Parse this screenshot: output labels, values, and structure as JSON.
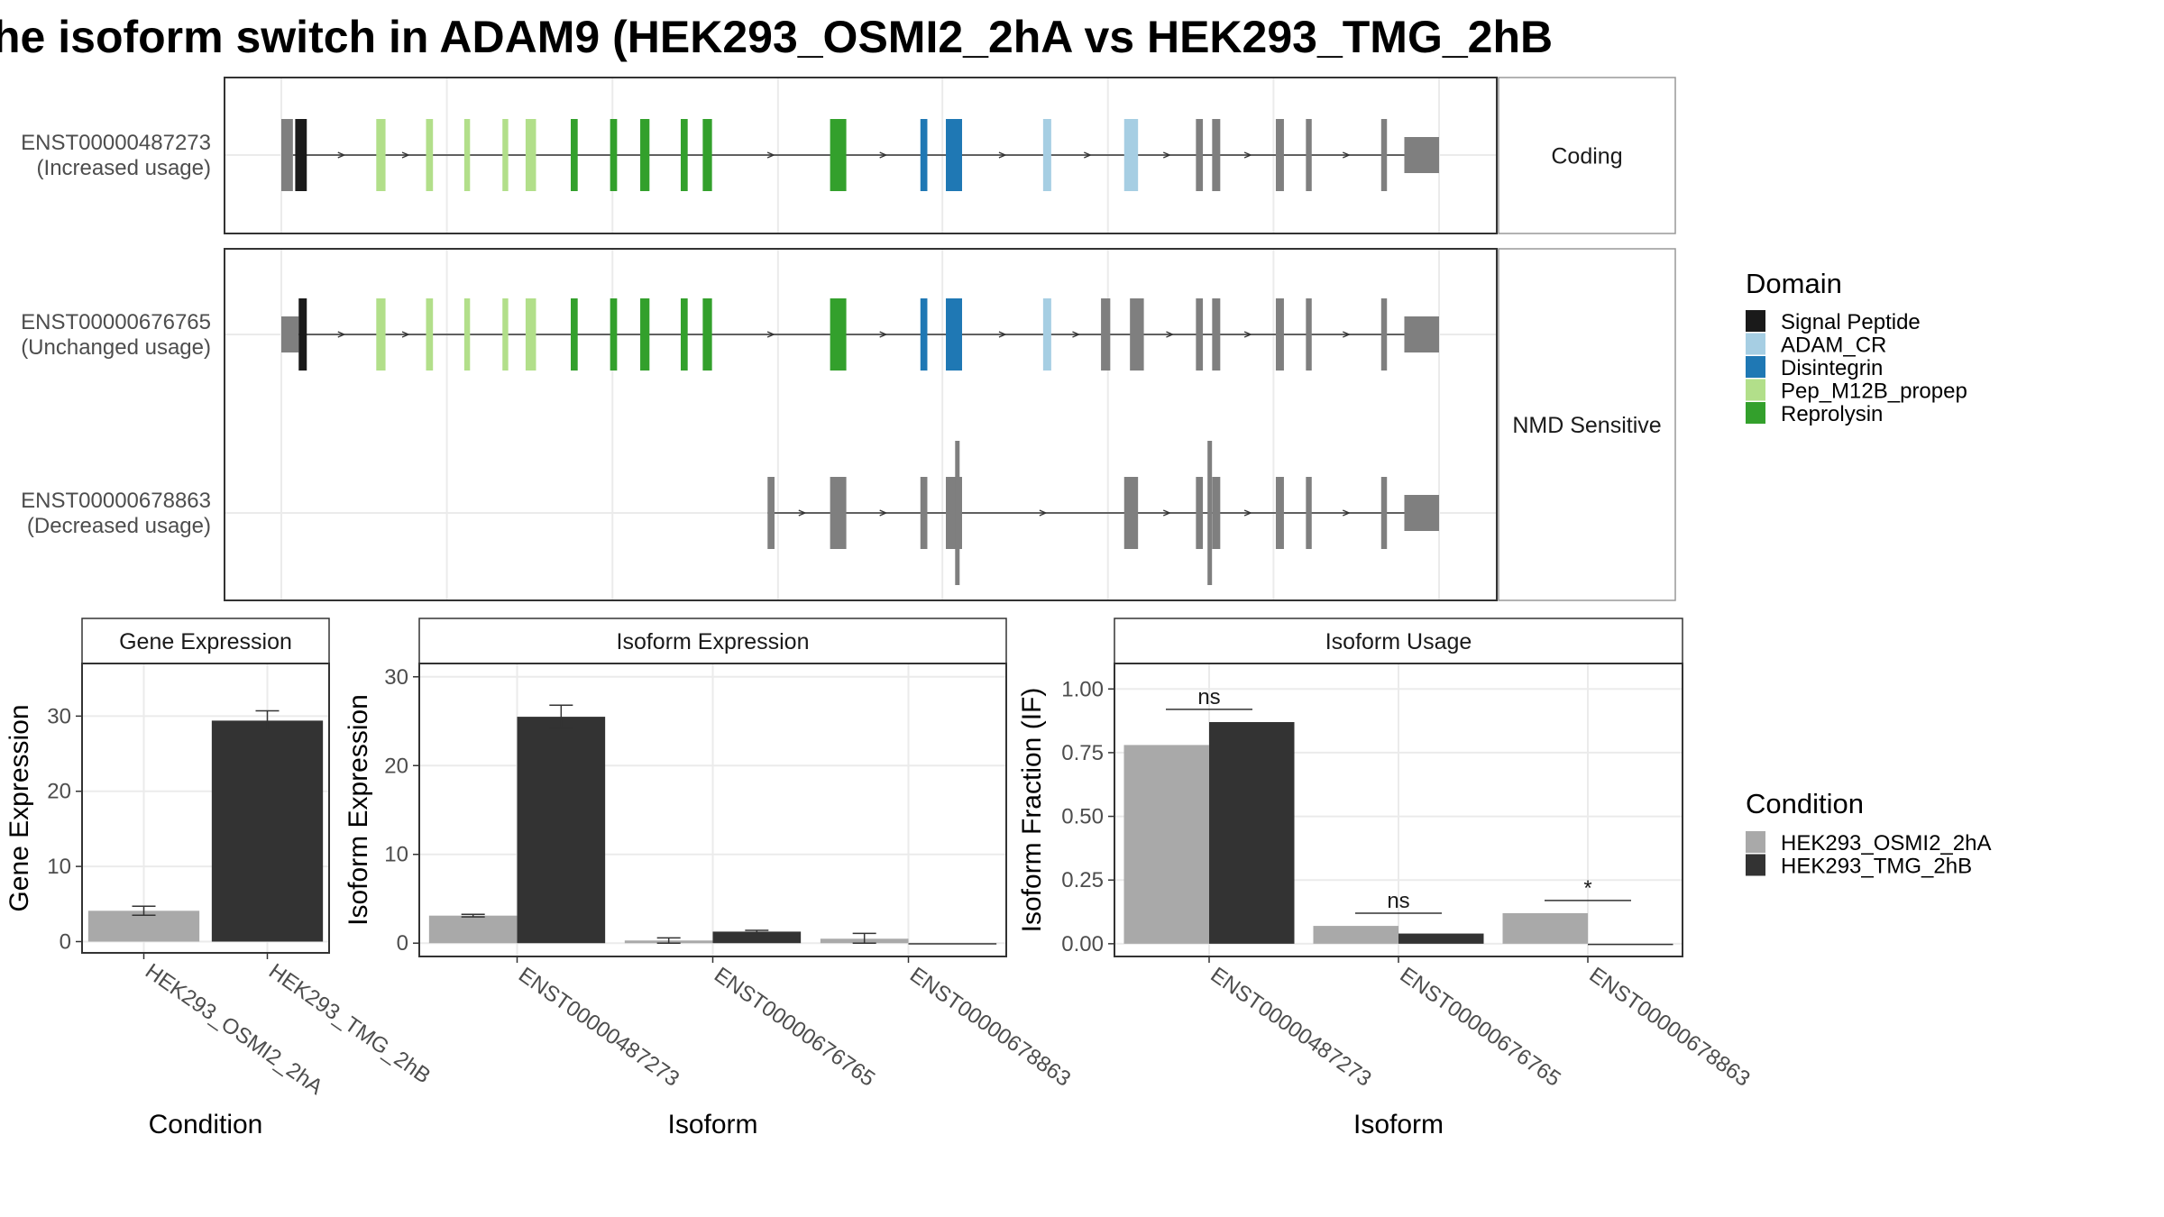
{
  "title": "he isoform switch in ADAM9 (HEK293_OSMI2_2hA vs HEK293_TMG_2hB",
  "colors": {
    "signal_peptide": "#1a1a1a",
    "adam_cr": "#a6cee3",
    "disintegrin": "#1f78b4",
    "pep_m12b_propep": "#b2df8a",
    "reprolysin": "#33a02c",
    "exon_grey": "#7f7f7f",
    "cond_a": "#a9a9a9",
    "cond_b": "#333333"
  },
  "chart_data": [
    {
      "type": "transcript_structure",
      "transcripts": [
        {
          "id": "ENST00000487273",
          "usage": "(Increased usage)",
          "group": "Coding",
          "span": [
            0.01,
            1.0
          ],
          "exons": [
            [
              0.0,
              0.01,
              "grey"
            ],
            [
              0.012,
              0.022,
              "signal_peptide"
            ],
            [
              0.082,
              0.09,
              "pep_m12b_propep"
            ],
            [
              0.125,
              0.131,
              "pep_m12b_propep"
            ],
            [
              0.158,
              0.163,
              "pep_m12b_propep"
            ],
            [
              0.191,
              0.196,
              "pep_m12b_propep"
            ],
            [
              0.211,
              0.22,
              "pep_m12b_propep"
            ],
            [
              0.25,
              0.256,
              "reprolysin"
            ],
            [
              0.284,
              0.29,
              "reprolysin"
            ],
            [
              0.31,
              0.318,
              "reprolysin"
            ],
            [
              0.345,
              0.351,
              "reprolysin"
            ],
            [
              0.364,
              0.372,
              "reprolysin"
            ],
            [
              0.474,
              0.488,
              "reprolysin"
            ],
            [
              0.552,
              0.558,
              "disintegrin"
            ],
            [
              0.574,
              0.588,
              "disintegrin"
            ],
            [
              0.658,
              0.665,
              "adam_cr"
            ],
            [
              0.728,
              0.74,
              "adam_cr"
            ],
            [
              0.79,
              0.796,
              "grey"
            ],
            [
              0.804,
              0.811,
              "grey"
            ],
            [
              0.859,
              0.866,
              "grey"
            ],
            [
              0.885,
              0.89,
              "grey"
            ],
            [
              0.95,
              0.955,
              "grey"
            ],
            [
              0.97,
              1.0,
              "grey"
            ]
          ]
        },
        {
          "id": "ENST00000676765",
          "usage": "(Unchanged usage)",
          "group": "NMD Sensitive",
          "span": [
            0.0,
            1.0
          ],
          "exons": [
            [
              0.0,
              0.015,
              "grey"
            ],
            [
              0.015,
              0.022,
              "signal_peptide"
            ],
            [
              0.082,
              0.09,
              "pep_m12b_propep"
            ],
            [
              0.125,
              0.131,
              "pep_m12b_propep"
            ],
            [
              0.158,
              0.163,
              "pep_m12b_propep"
            ],
            [
              0.191,
              0.196,
              "pep_m12b_propep"
            ],
            [
              0.211,
              0.22,
              "pep_m12b_propep"
            ],
            [
              0.25,
              0.256,
              "reprolysin"
            ],
            [
              0.284,
              0.29,
              "reprolysin"
            ],
            [
              0.31,
              0.318,
              "reprolysin"
            ],
            [
              0.345,
              0.351,
              "reprolysin"
            ],
            [
              0.364,
              0.372,
              "reprolysin"
            ],
            [
              0.474,
              0.488,
              "reprolysin"
            ],
            [
              0.552,
              0.558,
              "disintegrin"
            ],
            [
              0.574,
              0.588,
              "disintegrin"
            ],
            [
              0.658,
              0.665,
              "adam_cr"
            ],
            [
              0.708,
              0.716,
              "grey"
            ],
            [
              0.733,
              0.745,
              "grey"
            ],
            [
              0.79,
              0.796,
              "grey"
            ],
            [
              0.804,
              0.811,
              "grey"
            ],
            [
              0.859,
              0.866,
              "grey"
            ],
            [
              0.885,
              0.89,
              "grey"
            ],
            [
              0.95,
              0.955,
              "grey"
            ],
            [
              0.97,
              1.0,
              "grey"
            ]
          ]
        },
        {
          "id": "ENST00000678863",
          "usage": "(Decreased usage)",
          "group": "NMD Sensitive",
          "span": [
            0.42,
            1.0
          ],
          "exons": [
            [
              0.42,
              0.426,
              "grey"
            ],
            [
              0.474,
              0.488,
              "grey"
            ],
            [
              0.552,
              0.558,
              "grey"
            ],
            [
              0.574,
              0.588,
              "grey"
            ],
            [
              0.728,
              0.74,
              "grey"
            ],
            [
              0.79,
              0.796,
              "grey"
            ],
            [
              0.804,
              0.811,
              "grey"
            ],
            [
              0.859,
              0.866,
              "grey"
            ],
            [
              0.885,
              0.89,
              "grey"
            ],
            [
              0.95,
              0.955,
              "grey"
            ],
            [
              0.97,
              1.0,
              "grey"
            ]
          ]
        }
      ],
      "legend_title": "Domain",
      "legend": [
        {
          "label": "Signal Peptide",
          "color_key": "signal_peptide"
        },
        {
          "label": "ADAM_CR",
          "color_key": "adam_cr"
        },
        {
          "label": "Disintegrin",
          "color_key": "disintegrin"
        },
        {
          "label": "Pep_M12B_propep",
          "color_key": "pep_m12b_propep"
        },
        {
          "label": "Reprolysin",
          "color_key": "reprolysin"
        }
      ],
      "facets": [
        "Coding",
        "NMD Sensitive"
      ]
    },
    {
      "type": "bar",
      "panel": "Gene Expression",
      "categories": [
        "HEK293_OSMI2_2hA",
        "HEK293_TMG_2hB"
      ],
      "values": [
        4.1,
        29.4
      ],
      "errors": [
        0.6,
        1.3
      ],
      "ylabel": "Gene Expression",
      "xlabel": "Condition",
      "ylim": [
        -1.5,
        37
      ],
      "yticks": [
        0,
        10,
        20,
        30
      ]
    },
    {
      "type": "bar",
      "panel": "Isoform Expression",
      "categories": [
        "ENST00000487273",
        "ENST00000676765",
        "ENST00000678863"
      ],
      "series": [
        {
          "name": "HEK293_OSMI2_2hA",
          "values": [
            3.1,
            0.3,
            0.5
          ],
          "errors": [
            0.15,
            0.3,
            0.6
          ]
        },
        {
          "name": "HEK293_TMG_2hB",
          "values": [
            25.5,
            1.3,
            0.0
          ],
          "errors": [
            1.3,
            0.15,
            0.0
          ]
        }
      ],
      "ylabel": "Isoform Expression",
      "xlabel": "Isoform",
      "ylim": [
        -1.5,
        31.5
      ],
      "yticks": [
        0,
        10,
        20,
        30
      ]
    },
    {
      "type": "bar",
      "panel": "Isoform Usage",
      "categories": [
        "ENST00000487273",
        "ENST00000676765",
        "ENST00000678863"
      ],
      "series": [
        {
          "name": "HEK293_OSMI2_2hA",
          "values": [
            0.78,
            0.07,
            0.12
          ]
        },
        {
          "name": "HEK293_TMG_2hB",
          "values": [
            0.87,
            0.04,
            0.0
          ]
        }
      ],
      "significance": [
        "ns",
        "ns",
        "*"
      ],
      "ylabel": "Isoform Fraction (IF)",
      "xlabel": "Isoform",
      "ylim": [
        -0.05,
        1.1
      ],
      "yticks": [
        "0.00",
        "0.25",
        "0.50",
        "0.75",
        "1.00"
      ]
    }
  ],
  "condition_legend": {
    "title": "Condition",
    "items": [
      "HEK293_OSMI2_2hA",
      "HEK293_TMG_2hB"
    ]
  }
}
